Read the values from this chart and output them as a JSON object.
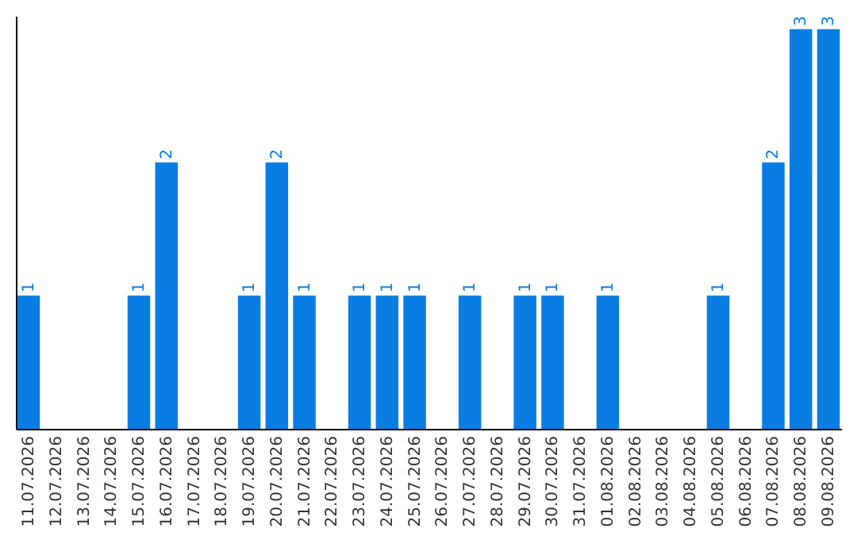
{
  "chart_data": {
    "type": "bar",
    "categories": [
      "11.07.2026",
      "12.07.2026",
      "13.07.2026",
      "14.07.2026",
      "15.07.2026",
      "16.07.2026",
      "17.07.2026",
      "18.07.2026",
      "19.07.2026",
      "20.07.2026",
      "21.07.2026",
      "22.07.2026",
      "23.07.2026",
      "24.07.2026",
      "25.07.2026",
      "26.07.2026",
      "27.07.2026",
      "28.07.2026",
      "29.07.2026",
      "30.07.2026",
      "31.07.2026",
      "01.08.2026",
      "02.08.2026",
      "03.08.2026",
      "04.08.2026",
      "05.08.2026",
      "06.08.2026",
      "07.08.2026",
      "08.08.2026",
      "09.08.2026"
    ],
    "values": [
      1,
      null,
      null,
      null,
      1,
      2,
      null,
      null,
      1,
      2,
      1,
      null,
      1,
      1,
      1,
      null,
      1,
      null,
      1,
      1,
      null,
      1,
      null,
      null,
      null,
      1,
      null,
      2,
      3,
      3
    ],
    "color": "#0a7de3",
    "ylim": [
      0,
      3.1
    ],
    "data_labels": true,
    "tick_labels": "x",
    "grid": false
  }
}
